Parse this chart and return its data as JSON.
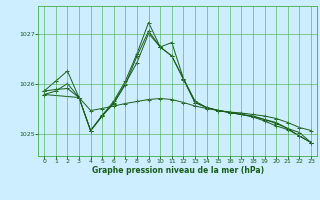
{
  "background_color": "#cceeff",
  "grid_color": "#44aa44",
  "line_color": "#1a5c1a",
  "xlabel": "Graphe pression niveau de la mer (hPa)",
  "ylim": [
    1024.55,
    1027.55
  ],
  "xlim": [
    -0.5,
    23.5
  ],
  "yticks": [
    1025,
    1026,
    1027
  ],
  "xticks": [
    0,
    1,
    2,
    3,
    4,
    5,
    6,
    7,
    8,
    9,
    10,
    11,
    12,
    13,
    14,
    15,
    16,
    17,
    18,
    19,
    20,
    21,
    22,
    23
  ],
  "series1_x": [
    0,
    1,
    2,
    3,
    4,
    5,
    6,
    7,
    8,
    9,
    10,
    11,
    12,
    13,
    14,
    15,
    16,
    17,
    18,
    19,
    20,
    21,
    22,
    23
  ],
  "series1_y": [
    1025.85,
    1026.05,
    1026.25,
    1025.72,
    1025.05,
    1025.35,
    1025.65,
    1026.05,
    1026.6,
    1027.22,
    1026.73,
    1026.82,
    1026.1,
    1025.65,
    1025.52,
    1025.46,
    1025.42,
    1025.38,
    1025.35,
    1025.28,
    1025.2,
    1025.1,
    1024.95,
    1024.82
  ],
  "series2_x": [
    0,
    1,
    2,
    3,
    4,
    5,
    6,
    7,
    8,
    9,
    10,
    11,
    12,
    13,
    14,
    15,
    16,
    17,
    18,
    19,
    20,
    21,
    22,
    23
  ],
  "series2_y": [
    1025.85,
    1025.88,
    1025.9,
    1025.72,
    1025.46,
    1025.5,
    1025.55,
    1025.6,
    1025.64,
    1025.68,
    1025.7,
    1025.68,
    1025.62,
    1025.55,
    1025.5,
    1025.46,
    1025.43,
    1025.41,
    1025.38,
    1025.35,
    1025.3,
    1025.22,
    1025.12,
    1025.06
  ],
  "series3_x": [
    0,
    3,
    4,
    5,
    6,
    7,
    8,
    9,
    10,
    11,
    12,
    13,
    14,
    15,
    16,
    17,
    18,
    19,
    20,
    21,
    22,
    23
  ],
  "series3_y": [
    1025.78,
    1025.72,
    1025.06,
    1025.37,
    1025.62,
    1026.0,
    1026.42,
    1027.0,
    1026.73,
    1026.55,
    1026.1,
    1025.62,
    1025.52,
    1025.46,
    1025.42,
    1025.38,
    1025.34,
    1025.28,
    1025.22,
    1025.1,
    1025.02,
    1024.82
  ],
  "series4_x": [
    0,
    1,
    2,
    3,
    4,
    5,
    6,
    7,
    8,
    9,
    10,
    11,
    12,
    13,
    14,
    15,
    16,
    17,
    18,
    19,
    20,
    21,
    22,
    23
  ],
  "series4_y": [
    1025.78,
    1025.85,
    1026.0,
    1025.72,
    1025.06,
    1025.35,
    1025.6,
    1025.98,
    1026.55,
    1027.05,
    1026.73,
    1026.55,
    1026.08,
    1025.62,
    1025.52,
    1025.46,
    1025.42,
    1025.38,
    1025.33,
    1025.25,
    1025.15,
    1025.08,
    1024.95,
    1024.82
  ],
  "figsize": [
    3.2,
    2.0
  ],
  "dpi": 100
}
